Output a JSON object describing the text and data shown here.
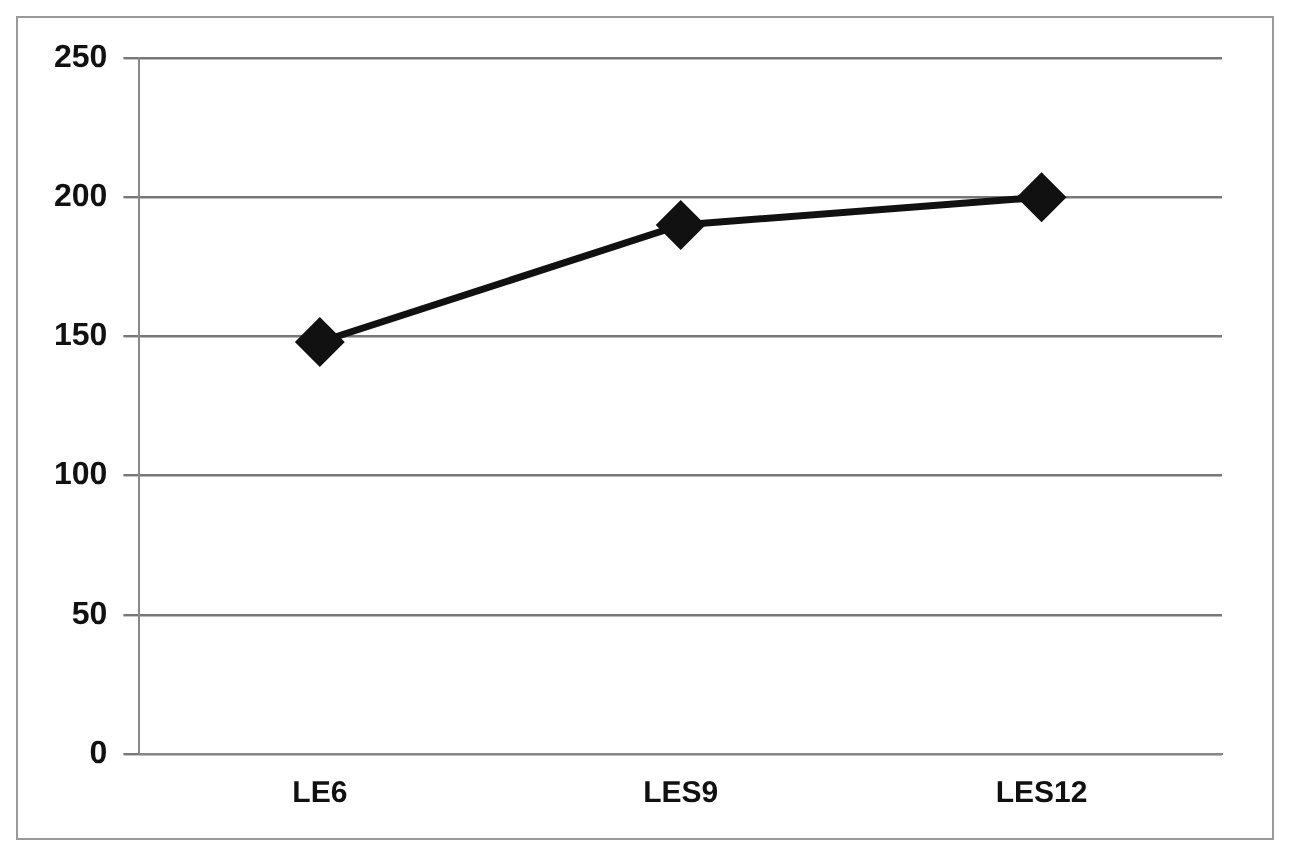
{
  "chart_data": {
    "type": "line",
    "categories": [
      "LE6",
      "LES9",
      "LES12"
    ],
    "series": [
      {
        "color": "#111111",
        "values": [
          148,
          190,
          200
        ]
      }
    ],
    "ylim": [
      0,
      250
    ],
    "yticks": [
      0,
      50,
      100,
      150,
      200,
      250
    ],
    "grid": "y",
    "legend": false,
    "marker": "diamond",
    "line_style": "solid"
  }
}
